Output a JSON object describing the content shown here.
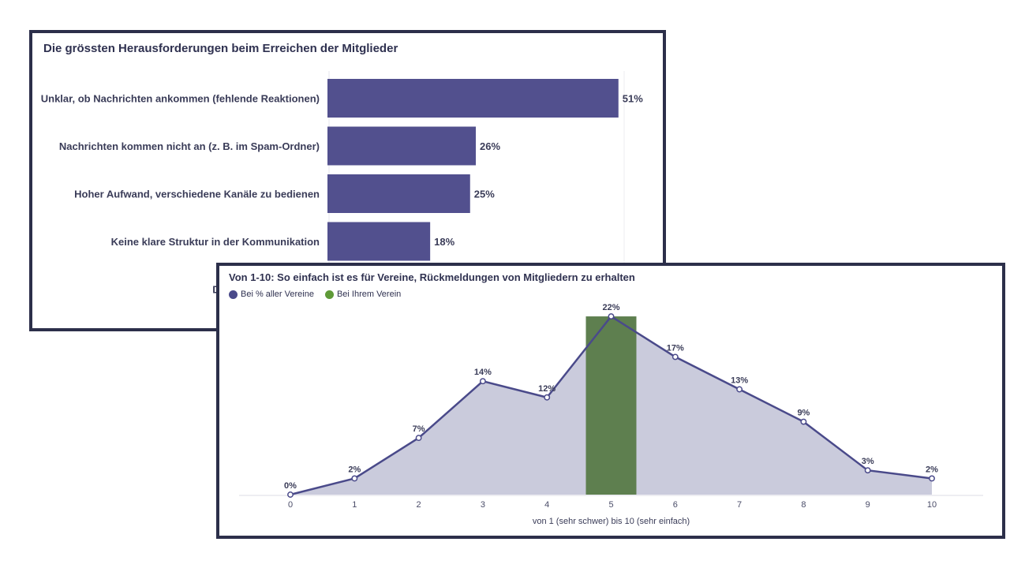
{
  "colors": {
    "bar": "#52508e",
    "line": "#4a4a8a",
    "area": "#cacbdc",
    "highlight": "#5e7f4f",
    "legend_green": "#5f9a38",
    "border": "#2c2f4a"
  },
  "chart_data": [
    {
      "type": "bar",
      "orientation": "horizontal",
      "title": "Die grössten Herausforderungen beim Erreichen der Mitglieder",
      "categories": [
        "Unklar, ob Nachrichten ankommen (fehlende Reaktionen)",
        "Nachrichten kommen nicht an (z. B. im Spam-Ordner)",
        "Hoher Aufwand, verschiedene Kanäle zu bedienen",
        "Keine klare Struktur in der Kommunikation",
        "Datenschutzprobleme"
      ],
      "values": [
        51,
        26,
        25,
        18,
        null
      ],
      "value_labels": [
        "51%",
        "26%",
        "25%",
        "18%",
        ""
      ],
      "xlim": [
        0,
        52
      ],
      "grid": false
    },
    {
      "type": "area",
      "title": "Von 1-10: So einfach ist es für Vereine, Rückmeldungen von Mitgliedern zu erhalten",
      "xlabel": "von 1 (sehr schwer) bis 10 (sehr einfach)",
      "x": [
        0,
        1,
        2,
        3,
        4,
        5,
        6,
        7,
        8,
        9,
        10
      ],
      "series": [
        {
          "name": "Bei % aller Vereine",
          "values": [
            0,
            2,
            7,
            14,
            12,
            22,
            17,
            13,
            9,
            3,
            2
          ]
        }
      ],
      "point_labels": [
        "0%",
        "2%",
        "7%",
        "14%",
        "12%",
        "22%",
        "17%",
        "13%",
        "9%",
        "3%",
        "2%"
      ],
      "highlight": {
        "name": "Bei Ihrem Verein",
        "x": 5,
        "value": 22
      },
      "ylim": [
        0,
        22
      ],
      "legend": "top-left",
      "grid": false
    }
  ]
}
